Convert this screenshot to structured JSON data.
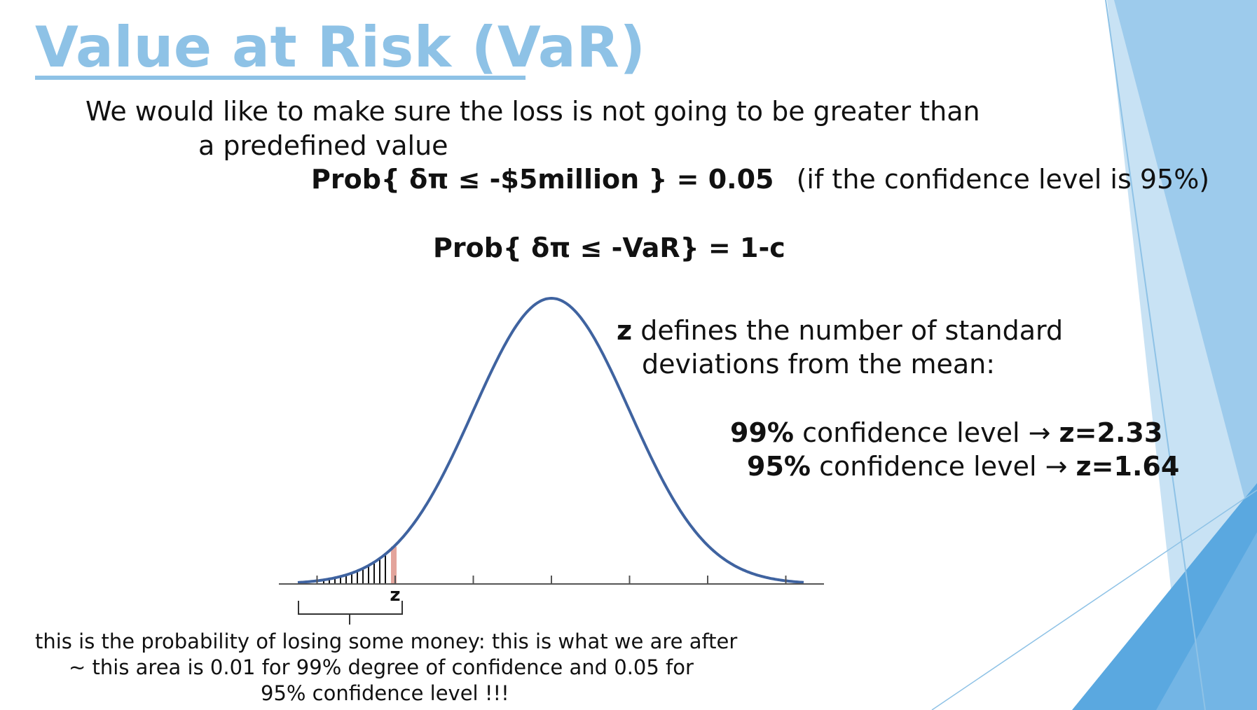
{
  "slide": {
    "title": "Value at Risk (VaR)",
    "intro_line1": "We would like to make sure the loss is not going to be greater than",
    "intro_line2": "a predefined value",
    "formula1_bold": "Prob{ δπ ≤ -$5million } = 0.05",
    "formula1_note": "(if the confidence level is 95%)",
    "formula2": "Prob{ δπ ≤ -VaR} = 1-c",
    "z_def_symbol": "z",
    "z_def_line1": "defines the number of standard",
    "z_def_line2": "deviations from the mean:",
    "conf99_pct": "99%",
    "conf99_text": "confidence level →",
    "conf99_z": "z=2.33",
    "conf95_pct": "95%",
    "conf95_text": "confidence level →",
    "conf95_z": "z=1.64",
    "z_label": "z",
    "caption_line1": "this is the probability of losing some money: this is what we are after",
    "caption_line2": "~ this area is 0.01 for 99% degree of confidence and 0.05 for",
    "caption_line3": "95% confidence level !!!"
  },
  "colors": {
    "title": "#8ec2e6",
    "curve": "#3f63a0",
    "critical_bar": "#e3a49b",
    "accent_blue": "#5aa8e0"
  }
}
